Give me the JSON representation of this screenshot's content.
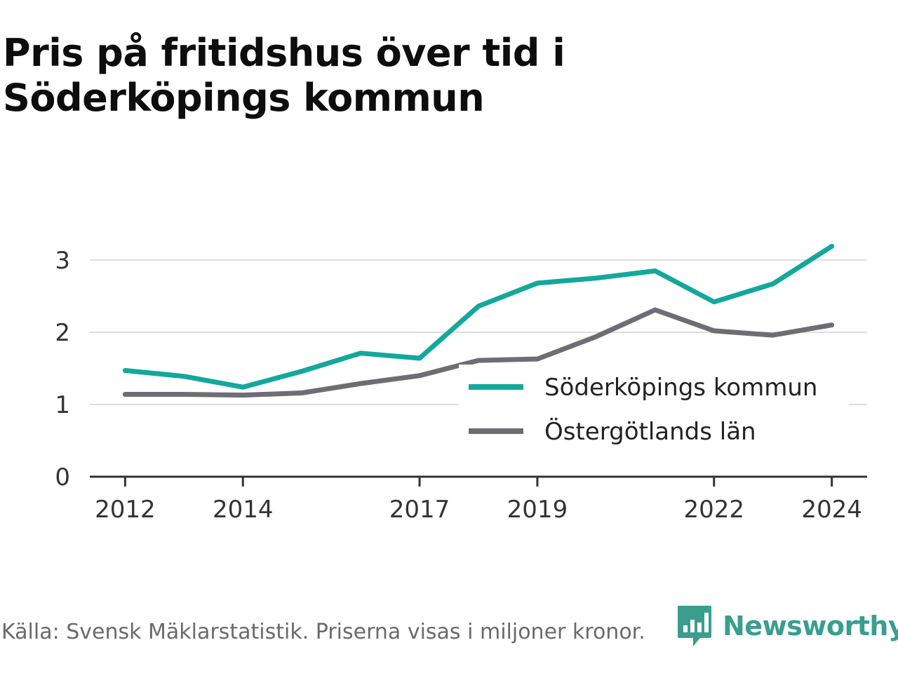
{
  "title": "Pris på fritidshus över tid i Söderköpings kommun",
  "source": "Källa: Svensk Mäklarstatistik. Priserna visas i miljoner kronor.",
  "brand": {
    "name": "Newsworthy",
    "icon": "newsworthy-logo-icon",
    "color": "#3a9e8f"
  },
  "chart_data": {
    "type": "line",
    "title": "Pris på fritidshus över tid i Söderköpings kommun",
    "xlabel": "",
    "ylabel": "",
    "x": [
      2012,
      2013,
      2014,
      2015,
      2016,
      2017,
      2018,
      2019,
      2020,
      2021,
      2022,
      2023,
      2024
    ],
    "x_ticks": [
      2012,
      2014,
      2017,
      2019,
      2022,
      2024
    ],
    "y_ticks": [
      0,
      1,
      2,
      3
    ],
    "xlim": [
      2011.4,
      2024.6
    ],
    "ylim": [
      0,
      3.3
    ],
    "grid": "horizontal",
    "legend_position": "right",
    "series": [
      {
        "name": "Söderköpings kommun",
        "color": "#13a89b",
        "values": [
          1.47,
          1.39,
          1.24,
          1.46,
          1.71,
          1.64,
          2.36,
          2.68,
          2.75,
          2.85,
          2.42,
          2.67,
          3.19
        ]
      },
      {
        "name": "Östergötlands län",
        "color": "#6e6d75",
        "values": [
          1.14,
          1.14,
          1.13,
          1.16,
          1.29,
          1.4,
          1.61,
          1.63,
          1.94,
          2.31,
          2.02,
          1.96,
          2.1
        ]
      }
    ]
  }
}
